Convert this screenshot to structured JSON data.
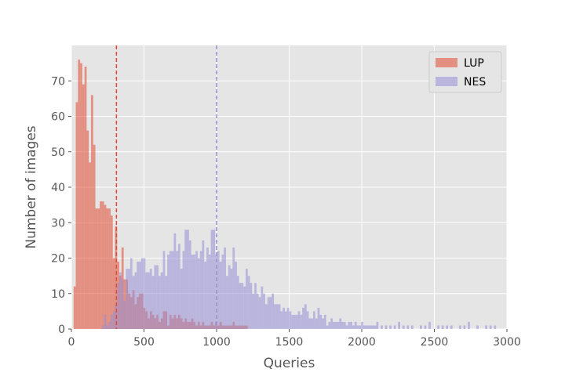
{
  "chart_data": {
    "type": "bar",
    "subtype": "overlapping-histogram",
    "title": "",
    "xlabel": "Queries",
    "ylabel": "Number of images",
    "xlim": [
      0,
      3000
    ],
    "ylim": [
      0,
      80
    ],
    "xticks": [
      "0",
      "500",
      "1000",
      "1500",
      "2000",
      "2500",
      "3000"
    ],
    "yticks": [
      "0",
      "10",
      "20",
      "30",
      "40",
      "50",
      "60",
      "70"
    ],
    "grid": true,
    "legend_position": "top-right",
    "background_color": "#e5e5e5",
    "bin_width": 15,
    "series": [
      {
        "name": "LUP",
        "color": "#e24a33",
        "opacity": 0.55,
        "mean_line": 310,
        "bins": [
          [
            15,
            12
          ],
          [
            30,
            64
          ],
          [
            45,
            76
          ],
          [
            60,
            75
          ],
          [
            75,
            69
          ],
          [
            90,
            74
          ],
          [
            105,
            56
          ],
          [
            120,
            47
          ],
          [
            135,
            66
          ],
          [
            150,
            52
          ],
          [
            165,
            34
          ],
          [
            180,
            34
          ],
          [
            195,
            36
          ],
          [
            210,
            36
          ],
          [
            225,
            35
          ],
          [
            240,
            34
          ],
          [
            255,
            34
          ],
          [
            270,
            32
          ],
          [
            285,
            20
          ],
          [
            300,
            29
          ],
          [
            315,
            19
          ],
          [
            330,
            15
          ],
          [
            345,
            23
          ],
          [
            360,
            14
          ],
          [
            375,
            14
          ],
          [
            390,
            10
          ],
          [
            405,
            9
          ],
          [
            420,
            11
          ],
          [
            435,
            7
          ],
          [
            450,
            9
          ],
          [
            465,
            10
          ],
          [
            480,
            10
          ],
          [
            495,
            6
          ],
          [
            510,
            5
          ],
          [
            525,
            3
          ],
          [
            540,
            5
          ],
          [
            555,
            4
          ],
          [
            570,
            3
          ],
          [
            585,
            4
          ],
          [
            600,
            2
          ],
          [
            615,
            3
          ],
          [
            630,
            5
          ],
          [
            645,
            5
          ],
          [
            660,
            1
          ],
          [
            675,
            4
          ],
          [
            690,
            3
          ],
          [
            705,
            4
          ],
          [
            720,
            3
          ],
          [
            735,
            4
          ],
          [
            750,
            3
          ],
          [
            765,
            2
          ],
          [
            780,
            3
          ],
          [
            795,
            2
          ],
          [
            810,
            2
          ],
          [
            825,
            3
          ],
          [
            840,
            2
          ],
          [
            855,
            1
          ],
          [
            870,
            2
          ],
          [
            885,
            1
          ],
          [
            900,
            2
          ],
          [
            915,
            1
          ],
          [
            930,
            1
          ],
          [
            945,
            1
          ],
          [
            960,
            2
          ],
          [
            975,
            1
          ],
          [
            990,
            2
          ],
          [
            1005,
            1
          ],
          [
            1020,
            2
          ],
          [
            1035,
            1
          ],
          [
            1050,
            1
          ],
          [
            1065,
            1
          ],
          [
            1080,
            1
          ],
          [
            1095,
            1
          ],
          [
            1110,
            2
          ],
          [
            1125,
            1
          ],
          [
            1140,
            1
          ],
          [
            1155,
            1
          ],
          [
            1170,
            1
          ],
          [
            1185,
            1
          ],
          [
            1200,
            1
          ]
        ]
      },
      {
        "name": "NES",
        "color": "#988ed5",
        "opacity": 0.55,
        "mean_line": 1000,
        "bins": [
          [
            210,
            1
          ],
          [
            225,
            4
          ],
          [
            240,
            1
          ],
          [
            255,
            2
          ],
          [
            270,
            4
          ],
          [
            285,
            5
          ],
          [
            300,
            7
          ],
          [
            315,
            13
          ],
          [
            330,
            16
          ],
          [
            345,
            14
          ],
          [
            360,
            8
          ],
          [
            375,
            17
          ],
          [
            390,
            17
          ],
          [
            405,
            20
          ],
          [
            420,
            15
          ],
          [
            435,
            16
          ],
          [
            450,
            19
          ],
          [
            465,
            19
          ],
          [
            480,
            20
          ],
          [
            495,
            20
          ],
          [
            510,
            16
          ],
          [
            525,
            16
          ],
          [
            540,
            17
          ],
          [
            555,
            15
          ],
          [
            570,
            18
          ],
          [
            585,
            18
          ],
          [
            600,
            15
          ],
          [
            615,
            16
          ],
          [
            630,
            22
          ],
          [
            645,
            15
          ],
          [
            660,
            21
          ],
          [
            675,
            22
          ],
          [
            690,
            22
          ],
          [
            705,
            27
          ],
          [
            720,
            22
          ],
          [
            735,
            24
          ],
          [
            750,
            17
          ],
          [
            765,
            22
          ],
          [
            780,
            28
          ],
          [
            795,
            28
          ],
          [
            810,
            25
          ],
          [
            825,
            21
          ],
          [
            840,
            21
          ],
          [
            855,
            22
          ],
          [
            870,
            20
          ],
          [
            885,
            22
          ],
          [
            900,
            25
          ],
          [
            915,
            19
          ],
          [
            930,
            23
          ],
          [
            945,
            21
          ],
          [
            960,
            28
          ],
          [
            975,
            28
          ],
          [
            990,
            21
          ],
          [
            1005,
            22
          ],
          [
            1020,
            19
          ],
          [
            1035,
            21
          ],
          [
            1050,
            23
          ],
          [
            1065,
            15
          ],
          [
            1080,
            18
          ],
          [
            1095,
            17
          ],
          [
            1110,
            23
          ],
          [
            1125,
            19
          ],
          [
            1140,
            15
          ],
          [
            1155,
            13
          ],
          [
            1170,
            13
          ],
          [
            1185,
            12
          ],
          [
            1200,
            17
          ],
          [
            1215,
            15
          ],
          [
            1230,
            13
          ],
          [
            1245,
            10
          ],
          [
            1260,
            13
          ],
          [
            1275,
            10
          ],
          [
            1290,
            9
          ],
          [
            1305,
            12
          ],
          [
            1320,
            10
          ],
          [
            1335,
            7
          ],
          [
            1350,
            9
          ],
          [
            1365,
            9
          ],
          [
            1380,
            10
          ],
          [
            1395,
            7
          ],
          [
            1410,
            7
          ],
          [
            1425,
            7
          ],
          [
            1440,
            5
          ],
          [
            1455,
            6
          ],
          [
            1470,
            5
          ],
          [
            1485,
            6
          ],
          [
            1500,
            5
          ],
          [
            1515,
            4
          ],
          [
            1530,
            4
          ],
          [
            1545,
            4
          ],
          [
            1560,
            5
          ],
          [
            1575,
            4
          ],
          [
            1590,
            6
          ],
          [
            1605,
            7
          ],
          [
            1620,
            5
          ],
          [
            1635,
            3
          ],
          [
            1650,
            3
          ],
          [
            1665,
            5
          ],
          [
            1680,
            3
          ],
          [
            1695,
            6
          ],
          [
            1710,
            4
          ],
          [
            1725,
            3
          ],
          [
            1740,
            4
          ],
          [
            1755,
            1
          ],
          [
            1770,
            2
          ],
          [
            1785,
            3
          ],
          [
            1800,
            2
          ],
          [
            1815,
            2
          ],
          [
            1830,
            2
          ],
          [
            1845,
            3
          ],
          [
            1860,
            2
          ],
          [
            1875,
            2
          ],
          [
            1890,
            1
          ],
          [
            1905,
            2
          ],
          [
            1920,
            2
          ],
          [
            1935,
            1
          ],
          [
            1950,
            2
          ],
          [
            1965,
            1
          ],
          [
            1980,
            1
          ],
          [
            1995,
            2
          ],
          [
            2010,
            1
          ],
          [
            2025,
            1
          ],
          [
            2040,
            1
          ],
          [
            2055,
            1
          ],
          [
            2070,
            1
          ],
          [
            2085,
            1
          ],
          [
            2100,
            2
          ],
          [
            2130,
            1
          ],
          [
            2160,
            1
          ],
          [
            2190,
            1
          ],
          [
            2220,
            1
          ],
          [
            2250,
            2
          ],
          [
            2280,
            1
          ],
          [
            2310,
            1
          ],
          [
            2340,
            1
          ],
          [
            2400,
            1
          ],
          [
            2430,
            1
          ],
          [
            2460,
            2
          ],
          [
            2520,
            1
          ],
          [
            2550,
            1
          ],
          [
            2580,
            1
          ],
          [
            2610,
            1
          ],
          [
            2670,
            1
          ],
          [
            2700,
            1
          ],
          [
            2730,
            2
          ],
          [
            2790,
            1
          ],
          [
            2850,
            1
          ],
          [
            2880,
            1
          ],
          [
            2910,
            1
          ]
        ]
      }
    ]
  }
}
